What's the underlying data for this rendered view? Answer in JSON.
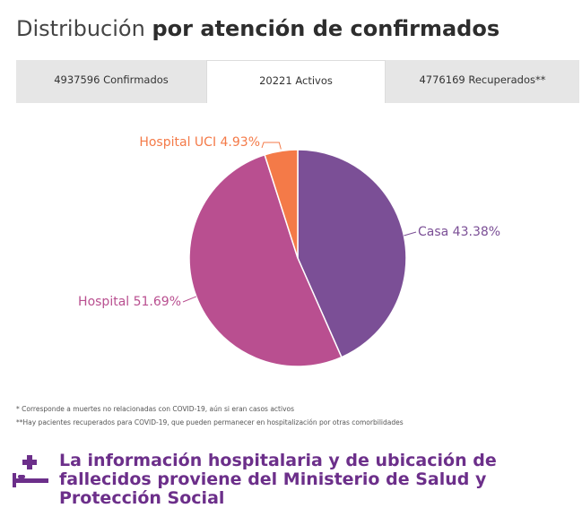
{
  "header": {
    "title_regular": "Distribución",
    "title_bold": "por atención de confirmados"
  },
  "tabs": [
    {
      "label": "4937596 Confirmados"
    },
    {
      "label": "20221 Activos"
    },
    {
      "label": "4776169 Recuperados**"
    }
  ],
  "chart_data": {
    "type": "pie",
    "slices": [
      {
        "label": "Casa 43.38%",
        "name": "Casa",
        "value": 43.38,
        "color": "#7b4f96"
      },
      {
        "label": "Hospital 51.69%",
        "name": "Hospital",
        "value": 51.69,
        "color": "#b94f90"
      },
      {
        "label": "Hospital UCI 4.93%",
        "name": "Hospital UCI",
        "value": 4.93,
        "color": "#f47a48"
      }
    ]
  },
  "notes": {
    "note1": "* Corresponde a muertes no relacionadas con COVID-19, aún si eran casos activos",
    "note2": "**Hay pacientes recuperados para COVID-19, que pueden permanecer en hospitalización por otras comorbilidades"
  },
  "footer": {
    "text": "La información hospitalaria y de ubicación de fallecidos proviene del Ministerio de Salud y Protección Social",
    "icon": "hospital-bed-icon",
    "color": "#6c2f8a"
  }
}
